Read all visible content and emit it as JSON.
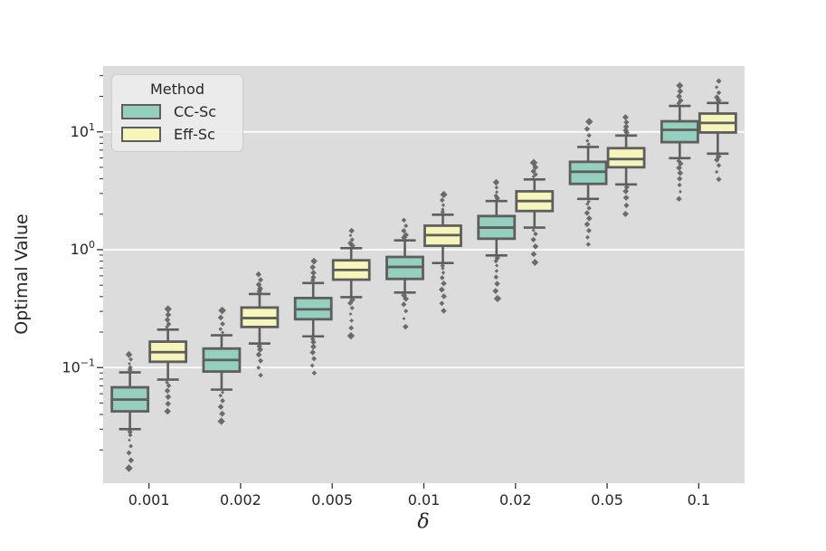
{
  "chart_data": {
    "type": "grouped_boxplot",
    "title": "",
    "xlabel": "δ",
    "ylabel": "Optimal Value",
    "yscale": "log",
    "ylim": [
      0.0104,
      36.5
    ],
    "y_major_ticks": [
      10,
      1,
      0.1
    ],
    "y_major_tick_exponents": [
      1,
      0,
      -1
    ],
    "grid": "horizontal-white-on-gray",
    "categories": [
      "0.001",
      "0.002",
      "0.005",
      "0.01",
      "0.02",
      "0.05",
      "0.1"
    ],
    "legend": {
      "title": "Method",
      "position": "upper-left"
    },
    "colors": {
      "plot_background": "#dcdcdc",
      "gridline": "#ffffff",
      "box_edge": "#5e5e5e",
      "flier": "#5e5e5e",
      "tick": "#333333",
      "text": "#262626"
    },
    "series": [
      {
        "name": "CC-Sc",
        "color": "#95cfc0",
        "boxes": [
          {
            "category": "0.001",
            "whislo": 0.03,
            "q1": 0.0425,
            "med": 0.0535,
            "q3": 0.068,
            "whishi": 0.091,
            "flier_lo": 0.014,
            "flier_hi": 0.129
          },
          {
            "category": "0.002",
            "whislo": 0.065,
            "q1": 0.0925,
            "med": 0.116,
            "q3": 0.145,
            "whishi": 0.188,
            "flier_lo": 0.035,
            "flier_hi": 0.305
          },
          {
            "category": "0.005",
            "whislo": 0.184,
            "q1": 0.257,
            "med": 0.312,
            "q3": 0.389,
            "whishi": 0.522,
            "flier_lo": 0.09,
            "flier_hi": 0.8
          },
          {
            "category": "0.01",
            "whislo": 0.433,
            "q1": 0.565,
            "med": 0.714,
            "q3": 0.868,
            "whishi": 1.2,
            "flier_lo": 0.222,
            "flier_hi": 1.78
          },
          {
            "category": "0.02",
            "whislo": 0.895,
            "q1": 1.24,
            "med": 1.54,
            "q3": 1.93,
            "whishi": 2.59,
            "flier_lo": 0.385,
            "flier_hi": 3.73
          },
          {
            "category": "0.05",
            "whislo": 2.7,
            "q1": 3.62,
            "med": 4.59,
            "q3": 5.57,
            "whishi": 7.44,
            "flier_lo": 1.11,
            "flier_hi": 12.2
          },
          {
            "category": "0.1",
            "whislo": 5.98,
            "q1": 8.18,
            "med": 10.4,
            "q3": 12.3,
            "whishi": 16.6,
            "flier_lo": 2.7,
            "flier_hi": 24.7
          }
        ]
      },
      {
        "name": "Eff-Sc",
        "color": "#f6f6ba",
        "boxes": [
          {
            "category": "0.001",
            "whislo": 0.079,
            "q1": 0.112,
            "med": 0.135,
            "q3": 0.166,
            "whishi": 0.21,
            "flier_lo": 0.0425,
            "flier_hi": 0.314
          },
          {
            "category": "0.002",
            "whislo": 0.16,
            "q1": 0.221,
            "med": 0.263,
            "q3": 0.323,
            "whishi": 0.421,
            "flier_lo": 0.086,
            "flier_hi": 0.618
          },
          {
            "category": "0.005",
            "whislo": 0.396,
            "q1": 0.557,
            "med": 0.673,
            "q3": 0.813,
            "whishi": 1.03,
            "flier_lo": 0.186,
            "flier_hi": 1.45
          },
          {
            "category": "0.01",
            "whislo": 0.771,
            "q1": 1.08,
            "med": 1.33,
            "q3": 1.6,
            "whishi": 1.98,
            "flier_lo": 0.303,
            "flier_hi": 2.94
          },
          {
            "category": "0.02",
            "whislo": 1.54,
            "q1": 2.13,
            "med": 2.59,
            "q3": 3.13,
            "whishi": 3.95,
            "flier_lo": 0.78,
            "flier_hi": 5.47
          },
          {
            "category": "0.05",
            "whislo": 3.58,
            "q1": 5.01,
            "med": 5.88,
            "q3": 7.27,
            "whishi": 9.31,
            "flier_lo": 2.01,
            "flier_hi": 13.3
          },
          {
            "category": "0.1",
            "whislo": 6.53,
            "q1": 9.88,
            "med": 11.9,
            "q3": 14.3,
            "whishi": 17.6,
            "flier_lo": 3.96,
            "flier_hi": 27.0
          }
        ]
      }
    ]
  }
}
